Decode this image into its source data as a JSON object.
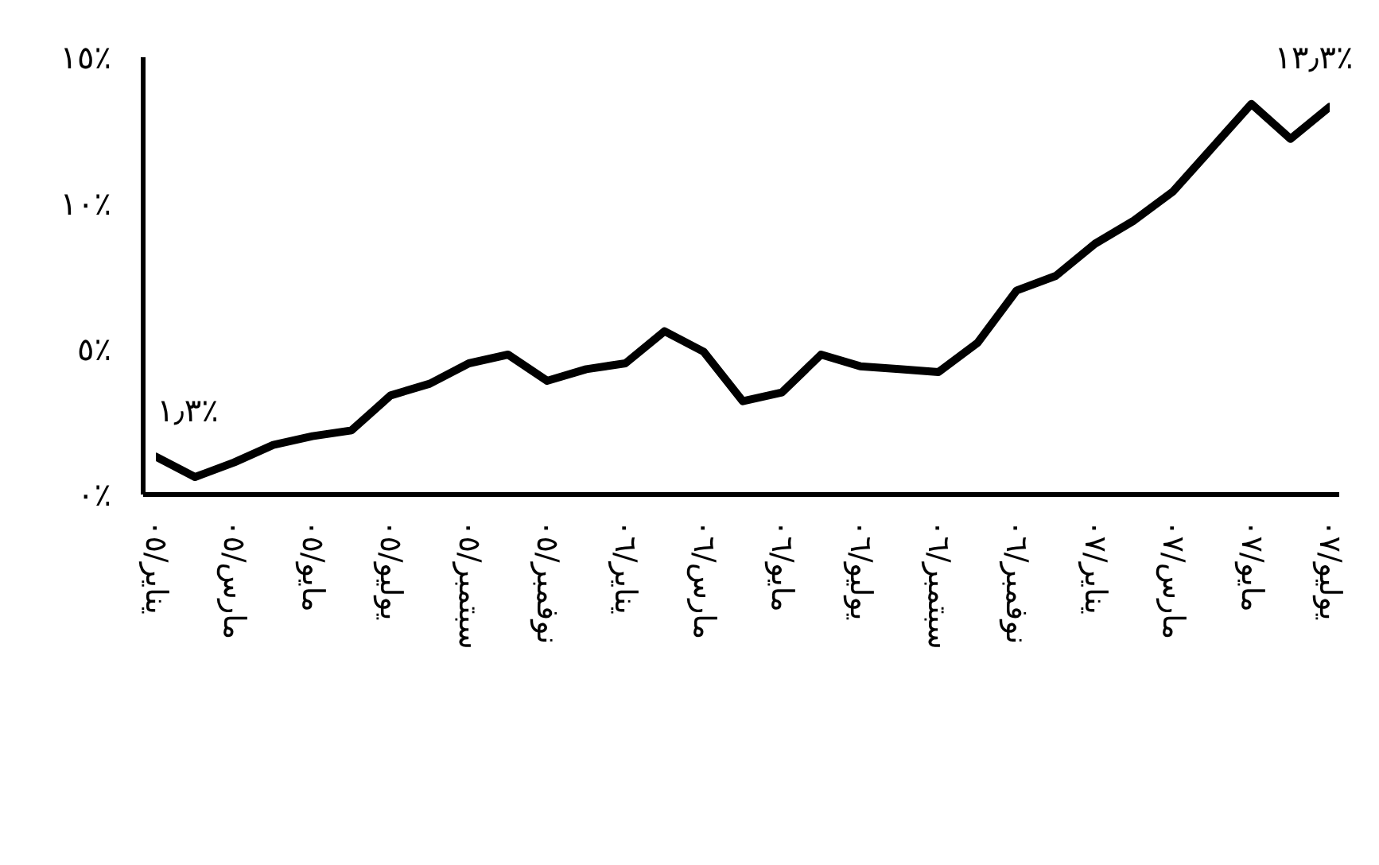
{
  "chart_data": {
    "type": "line",
    "categories": [
      "يناير/٠٥",
      null,
      "مارس/٠٥",
      null,
      "مايو/٠٥",
      null,
      "يوليو/٠٥",
      null,
      "سبتمبر/٠٥",
      null,
      "نوفمبر/٠٥",
      null,
      "يناير/٠٦",
      null,
      "مارس/٠٦",
      null,
      "مايو/٠٦",
      null,
      "يوليو/٠٦",
      null,
      "سبتمبر/٠٦",
      null,
      "نوفمبر/٠٦",
      null,
      "يناير/٠٧",
      null,
      "مارس/٠٧",
      null,
      "مايو/٠٧",
      null,
      "يوليو/٠٧"
    ],
    "series": [
      {
        "color": "#000000",
        "values": [
          1.3,
          0.6,
          1.1,
          1.7,
          2.0,
          2.2,
          3.4,
          3.8,
          4.5,
          4.8,
          3.9,
          4.3,
          4.5,
          5.6,
          4.9,
          3.2,
          3.5,
          4.8,
          4.4,
          4.3,
          4.2,
          5.2,
          7.0,
          7.5,
          8.6,
          9.4,
          10.4,
          11.9,
          13.4,
          12.2,
          13.3
        ]
      }
    ],
    "ylim": [
      0,
      15
    ],
    "yticks": [
      {
        "value": 0,
        "label": "٠٪"
      },
      {
        "value": 5,
        "label": "٥٪"
      },
      {
        "value": 10,
        "label": "١٠٪"
      },
      {
        "value": 15,
        "label": "١٥٪"
      }
    ],
    "annotations": [
      {
        "text": "١٫٣٪",
        "x": "يناير/٠٥",
        "y": 1.3
      },
      {
        "text": "١٣٫٣٪",
        "x": "يوليو/٠٧",
        "y": 13.3
      }
    ],
    "grid": false,
    "legend": false,
    "marker": "none",
    "line_style": "solid"
  }
}
